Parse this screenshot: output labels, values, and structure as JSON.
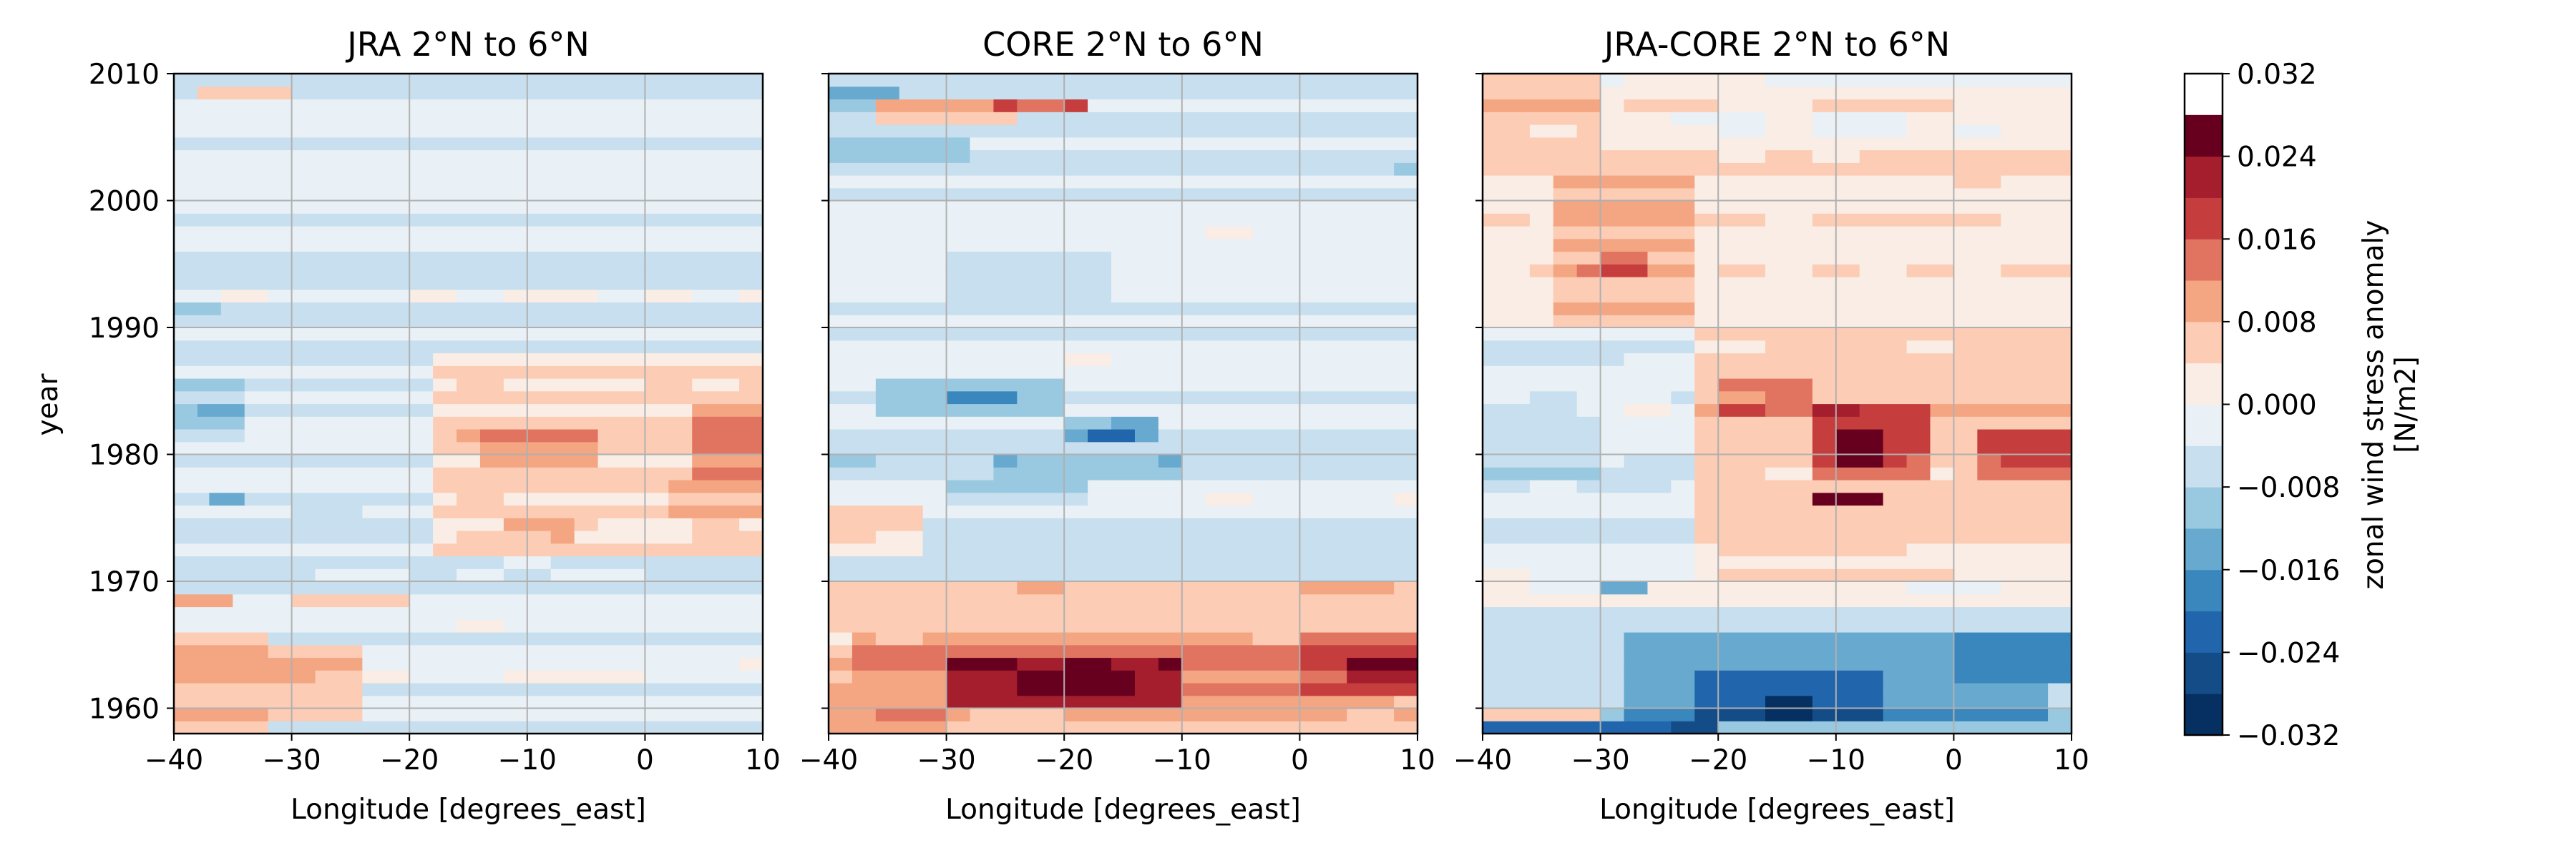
{
  "chart_data": {
    "type": "heatmap",
    "colormap": {
      "name": "RdBu_r",
      "colors": [
        "#053061",
        "#144c87",
        "#2166ac",
        "#3a87bd",
        "#67a9cf",
        "#99c9e0",
        "#c7dfee",
        "#e9f1f6",
        "#f9ede5",
        "#fcccb4",
        "#f4a582",
        "#e07461",
        "#c53e3d",
        "#a51e2d",
        "#67001f"
      ],
      "levels": [
        -0.032,
        -0.028,
        -0.024,
        -0.02,
        -0.016,
        -0.012,
        -0.008,
        -0.004,
        0.0,
        0.004,
        0.008,
        0.012,
        0.016,
        0.02,
        0.024,
        0.028,
        0.032
      ],
      "tick_values": [
        -0.032,
        -0.024,
        -0.016,
        -0.008,
        0.0,
        0.008,
        0.016,
        0.024,
        0.032
      ],
      "tick_labels": [
        "−0.032",
        "−0.024",
        "−0.016",
        "−0.008",
        "0.000",
        "0.008",
        "0.016",
        "0.024",
        "0.032"
      ],
      "label_line1": "zonal wind stress anomaly",
      "label_line2": "[N/m2]"
    },
    "x_ticks": [
      -40,
      -30,
      -20,
      -10,
      0,
      10
    ],
    "x_tick_labels": [
      "−40",
      "−30",
      "−20",
      "−10",
      "0",
      "10"
    ],
    "y_ticks": [
      1960,
      1970,
      1980,
      1990,
      2000,
      2010
    ],
    "y_tick_labels": [
      "1960",
      "1970",
      "1980",
      "1990",
      "2000",
      "2010"
    ],
    "xlim": [
      -40,
      10
    ],
    "ylim": [
      1958,
      2010
    ],
    "ylabel": "year",
    "grid": true,
    "panels": [
      {
        "title": "JRA 2°N to 6°N",
        "xlabel": "Longitude [degrees_east]",
        "features": [
          {
            "lon": [
              -40,
              10
            ],
            "yr": [
              1958,
              2010
            ],
            "v": -0.0035
          },
          {
            "lon": [
              -40,
              -32
            ],
            "yr": [
              1958,
              1966
            ],
            "v": 0.007
          },
          {
            "lon": [
              -32,
              -24
            ],
            "yr": [
              1959,
              1965
            ],
            "v": 0.005
          },
          {
            "lon": [
              -40,
              -35
            ],
            "yr": [
              1968,
              1969
            ],
            "v": 0.008
          },
          {
            "lon": [
              -30,
              -20
            ],
            "yr": [
              1968,
              1969
            ],
            "v": 0.005
          },
          {
            "lon": [
              -40,
              -34
            ],
            "yr": [
              1981,
              1986
            ],
            "v": -0.009
          },
          {
            "lon": [
              -38,
              -34
            ],
            "yr": [
              1983,
              1984
            ],
            "v": -0.014
          },
          {
            "lon": [
              -37,
              -34
            ],
            "yr": [
              1976,
              1977
            ],
            "v": -0.012
          },
          {
            "lon": [
              -40,
              -36
            ],
            "yr": [
              1991.5,
              1992.5
            ],
            "v": -0.009
          },
          {
            "lon": [
              -18,
              10
            ],
            "yr": [
              1972,
              1988
            ],
            "v": 0.005
          },
          {
            "lon": [
              -14,
              -4
            ],
            "yr": [
              1979,
              1982
            ],
            "v": 0.011
          },
          {
            "lon": [
              4,
              10
            ],
            "yr": [
              1978,
              1984
            ],
            "v": 0.013
          },
          {
            "lon": [
              2,
              10
            ],
            "yr": [
              1975,
              1978
            ],
            "v": 0.009
          },
          {
            "lon": [
              -12,
              -6
            ],
            "yr": [
              1973,
              1975
            ],
            "v": 0.01
          },
          {
            "lon": [
              -38,
              -30
            ],
            "yr": [
              2008,
              2009
            ],
            "v": 0.007
          },
          {
            "lon": [
              -30,
              -24
            ],
            "yr": [
              1975,
              1977
            ],
            "v": -0.006
          }
        ]
      },
      {
        "title": "CORE 2°N to 6°N",
        "xlabel": "Longitude [degrees_east]",
        "features": [
          {
            "lon": [
              -40,
              10
            ],
            "yr": [
              1958,
              2010
            ],
            "v": -0.004
          },
          {
            "lon": [
              -40,
              10
            ],
            "yr": [
              1958,
              1970
            ],
            "v": 0.006
          },
          {
            "lon": [
              -38,
              8
            ],
            "yr": [
              1960,
              1966
            ],
            "v": 0.012
          },
          {
            "lon": [
              -30,
              -10
            ],
            "yr": [
              1960.5,
              1964
            ],
            "v": 0.022
          },
          {
            "lon": [
              -24,
              -14
            ],
            "yr": [
              1961,
              1963.5
            ],
            "v": 0.029
          },
          {
            "lon": [
              0,
              10
            ],
            "yr": [
              1961,
              1966
            ],
            "v": 0.016
          },
          {
            "lon": [
              4,
              10
            ],
            "yr": [
              1962,
              1964
            ],
            "v": 0.024
          },
          {
            "lon": [
              -40,
              -30
            ],
            "yr": [
              1958,
              1962
            ],
            "v": 0.01
          },
          {
            "lon": [
              -36,
              -20
            ],
            "yr": [
              1983.5,
              1986.5
            ],
            "v": -0.011
          },
          {
            "lon": [
              -30,
              -24
            ],
            "yr": [
              1984,
              1985
            ],
            "v": -0.018
          },
          {
            "lon": [
              -20,
              -12
            ],
            "yr": [
              1981.5,
              1983
            ],
            "v": -0.014
          },
          {
            "lon": [
              -18,
              -14
            ],
            "yr": [
              1981.5,
              1982.5
            ],
            "v": -0.02
          },
          {
            "lon": [
              -40,
              -34
            ],
            "yr": [
              2007,
              2009
            ],
            "v": -0.012
          },
          {
            "lon": [
              -40,
              -28
            ],
            "yr": [
              2003,
              2005
            ],
            "v": -0.009
          },
          {
            "lon": [
              -36,
              -24
            ],
            "yr": [
              2006,
              2008
            ],
            "v": 0.008
          },
          {
            "lon": [
              -26,
              -18
            ],
            "yr": [
              2007.5,
              2008.5
            ],
            "v": 0.014
          },
          {
            "lon": [
              -30,
              -16
            ],
            "yr": [
              1992,
              1996
            ],
            "v": -0.008
          },
          {
            "lon": [
              -26,
              -10
            ],
            "yr": [
              1978,
              1980
            ],
            "v": -0.009
          },
          {
            "lon": [
              -30,
              -18
            ],
            "yr": [
              1976,
              1978
            ],
            "v": -0.01
          },
          {
            "lon": [
              -40,
              -32
            ],
            "yr": [
              1972,
              1976
            ],
            "v": 0.005
          }
        ]
      },
      {
        "title": "JRA-CORE 2°N to 6°N",
        "xlabel": "Longitude [degrees_east]",
        "features": [
          {
            "lon": [
              -40,
              10
            ],
            "yr": [
              1958,
              2010
            ],
            "v": 0.002
          },
          {
            "lon": [
              -40,
              -22
            ],
            "yr": [
              1970,
              1990
            ],
            "v": -0.003
          },
          {
            "lon": [
              -40,
              -30
            ],
            "yr": [
              1978,
              1984
            ],
            "v": -0.006
          },
          {
            "lon": [
              -22,
              10
            ],
            "yr": [
              1973,
              1990
            ],
            "v": 0.007
          },
          {
            "lon": [
              -12,
              -2
            ],
            "yr": [
              1978,
              1984
            ],
            "v": 0.017
          },
          {
            "lon": [
              -10,
              -6
            ],
            "yr": [
              1979,
              1982
            ],
            "v": 0.025
          },
          {
            "lon": [
              -12,
              -6
            ],
            "yr": [
              1976.5,
              1977.5
            ],
            "v": 0.026
          },
          {
            "lon": [
              2,
              10
            ],
            "yr": [
              1978,
              1982
            ],
            "v": 0.017
          },
          {
            "lon": [
              -20,
              -12
            ],
            "yr": [
              1983,
              1986
            ],
            "v": 0.013
          },
          {
            "lon": [
              -34,
              -22
            ],
            "yr": [
              1990,
              2002
            ],
            "v": 0.008
          },
          {
            "lon": [
              -30,
              -26
            ],
            "yr": [
              1994,
              1996
            ],
            "v": 0.014
          },
          {
            "lon": [
              -40,
              -30
            ],
            "yr": [
              2004,
              2010
            ],
            "v": 0.007
          },
          {
            "lon": [
              -40,
              10
            ],
            "yr": [
              1958,
              1968
            ],
            "v": -0.008
          },
          {
            "lon": [
              -28,
              8
            ],
            "yr": [
              1959,
              1966
            ],
            "v": -0.016
          },
          {
            "lon": [
              -22,
              -6
            ],
            "yr": [
              1959,
              1963
            ],
            "v": -0.024
          },
          {
            "lon": [
              -16,
              -12
            ],
            "yr": [
              1959.5,
              1961
            ],
            "v": -0.031
          },
          {
            "lon": [
              0,
              10
            ],
            "yr": [
              1962,
              1966
            ],
            "v": -0.02
          },
          {
            "lon": [
              -40,
              -20
            ],
            "yr": [
              1958.2,
              1959
            ],
            "v": -0.022
          },
          {
            "lon": [
              -40,
              -30
            ],
            "yr": [
              1959,
              1960
            ],
            "v": 0.008
          },
          {
            "lon": [
              -30,
              -26
            ],
            "yr": [
              1969,
              1970
            ],
            "v": -0.012
          }
        ]
      }
    ]
  }
}
